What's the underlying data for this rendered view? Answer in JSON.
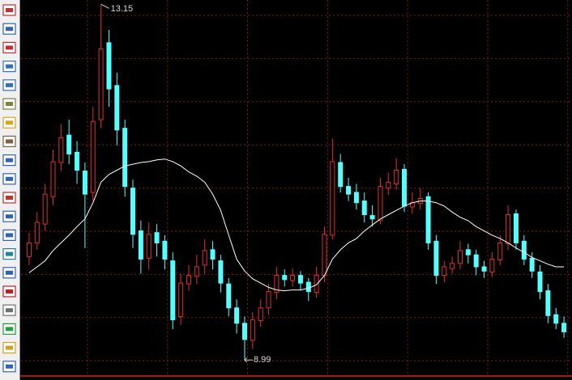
{
  "chart_data": {
    "type": "candlestick",
    "ylim": [
      8.87,
      13.2
    ],
    "grid": true,
    "up_color": "#e03030",
    "down_color": "#54ffff",
    "ma_color": "#ffffff",
    "high_label": 13.15,
    "low_label": 8.99,
    "open": [
      10.2,
      10.36,
      10.58,
      10.9,
      11.3,
      11.62,
      11.42,
      11.2,
      10.95,
      11.8,
      12.7,
      12.2,
      11.7,
      11.0,
      10.5,
      10.18,
      10.48,
      10.38,
      10.15,
      9.5,
      9.88,
      9.97,
      10.1,
      10.28,
      10.15,
      9.88,
      9.6,
      9.42,
      9.22,
      9.45,
      9.6,
      9.78,
      9.98,
      9.92,
      9.98,
      9.9,
      9.78,
      9.98,
      10.45,
      11.3,
      11.02,
      10.95,
      10.85,
      10.68,
      10.62,
      11.0,
      11.05,
      11.22,
      10.78,
      10.82,
      10.9,
      10.38,
      9.98,
      10.06,
      10.12,
      10.28,
      10.22,
      10.08,
      10.02,
      10.16,
      10.35,
      10.7,
      10.38,
      10.18,
      10.02,
      9.8,
      9.52,
      9.42
    ],
    "high": [
      10.48,
      10.72,
      11.05,
      11.45,
      11.75,
      11.8,
      11.55,
      11.3,
      11.95,
      13.15,
      12.85,
      12.35,
      11.8,
      11.1,
      10.62,
      10.6,
      10.58,
      10.45,
      10.25,
      10.0,
      10.1,
      10.22,
      10.4,
      10.38,
      10.22,
      9.95,
      9.7,
      9.5,
      9.55,
      9.7,
      9.88,
      10.08,
      10.05,
      10.06,
      10.03,
      9.95,
      10.08,
      10.55,
      11.58,
      11.4,
      11.12,
      11.05,
      10.95,
      10.8,
      11.12,
      11.18,
      11.35,
      11.28,
      10.95,
      11.0,
      10.95,
      10.45,
      10.15,
      10.2,
      10.38,
      10.35,
      10.28,
      10.15,
      10.25,
      10.45,
      10.8,
      10.75,
      10.45,
      10.25,
      10.1,
      9.88,
      9.6,
      9.5
    ],
    "low": [
      10.1,
      10.28,
      10.5,
      10.8,
      11.2,
      11.28,
      11.05,
      10.3,
      10.85,
      11.7,
      11.95,
      11.5,
      10.9,
      10.3,
      10.0,
      10.05,
      10.2,
      10.05,
      9.35,
      9.4,
      9.8,
      9.88,
      10.0,
      10.05,
      9.78,
      9.5,
      9.3,
      8.99,
      9.12,
      9.38,
      9.52,
      9.7,
      9.85,
      9.85,
      9.8,
      9.68,
      9.72,
      9.9,
      10.4,
      10.95,
      10.85,
      10.75,
      10.6,
      10.55,
      10.58,
      10.92,
      10.98,
      10.72,
      10.7,
      10.75,
      10.28,
      9.88,
      9.9,
      10.0,
      10.05,
      10.12,
      9.98,
      9.95,
      9.96,
      10.1,
      10.28,
      10.28,
      10.1,
      9.95,
      9.7,
      9.42,
      9.35,
      9.25
    ],
    "close": [
      10.36,
      10.6,
      10.93,
      11.31,
      11.59,
      11.4,
      11.21,
      10.93,
      11.78,
      12.63,
      12.16,
      11.68,
      11.02,
      10.46,
      10.17,
      10.46,
      10.36,
      10.17,
      9.46,
      9.89,
      9.98,
      10.08,
      10.27,
      10.17,
      9.89,
      9.6,
      9.42,
      9.23,
      9.46,
      9.6,
      9.79,
      9.98,
      9.93,
      9.98,
      9.89,
      9.79,
      9.98,
      10.46,
      11.31,
      11.02,
      10.93,
      10.83,
      10.69,
      10.64,
      11.02,
      11.07,
      11.21,
      10.79,
      10.83,
      10.88,
      10.36,
      9.98,
      10.08,
      10.12,
      10.27,
      10.22,
      10.08,
      10.03,
      10.17,
      10.36,
      10.69,
      10.36,
      10.17,
      10.03,
      9.79,
      9.51,
      9.42,
      9.32
    ],
    "ma": [
      10.01,
      10.08,
      10.15,
      10.27,
      10.36,
      10.45,
      10.55,
      10.64,
      10.83,
      11.07,
      11.16,
      11.21,
      11.26,
      11.28,
      11.3,
      11.31,
      11.33,
      11.34,
      11.31,
      11.26,
      11.19,
      11.14,
      11.07,
      10.93,
      10.74,
      10.45,
      10.17,
      10.03,
      9.94,
      9.89,
      9.84,
      9.81,
      9.8,
      9.81,
      9.81,
      9.83,
      9.87,
      9.98,
      10.17,
      10.28,
      10.36,
      10.41,
      10.5,
      10.57,
      10.64,
      10.69,
      10.74,
      10.79,
      10.83,
      10.85,
      10.85,
      10.83,
      10.79,
      10.72,
      10.66,
      10.62,
      10.55,
      10.5,
      10.45,
      10.41,
      10.36,
      10.3,
      10.25,
      10.19,
      10.15,
      10.11,
      10.08,
      10.08
    ]
  }
}
